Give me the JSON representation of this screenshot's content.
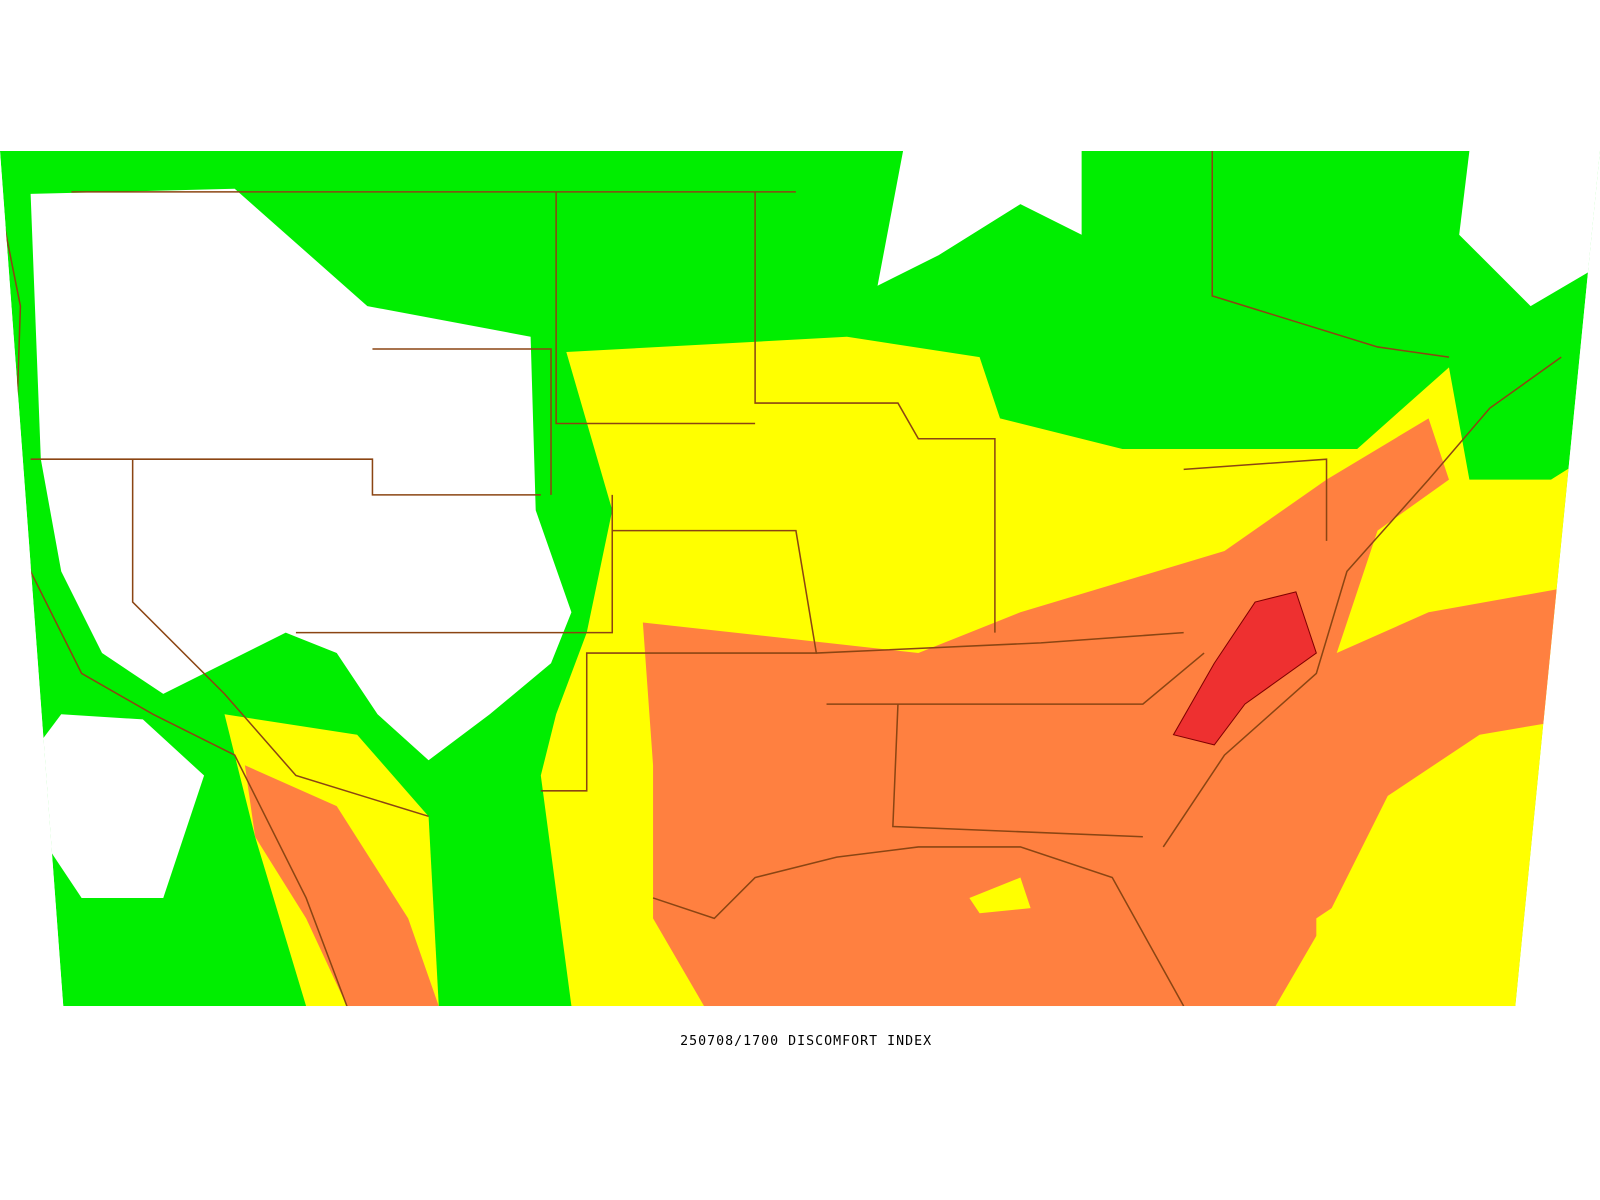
{
  "caption": "250708/1700 DISCOMFORT INDEX"
}
